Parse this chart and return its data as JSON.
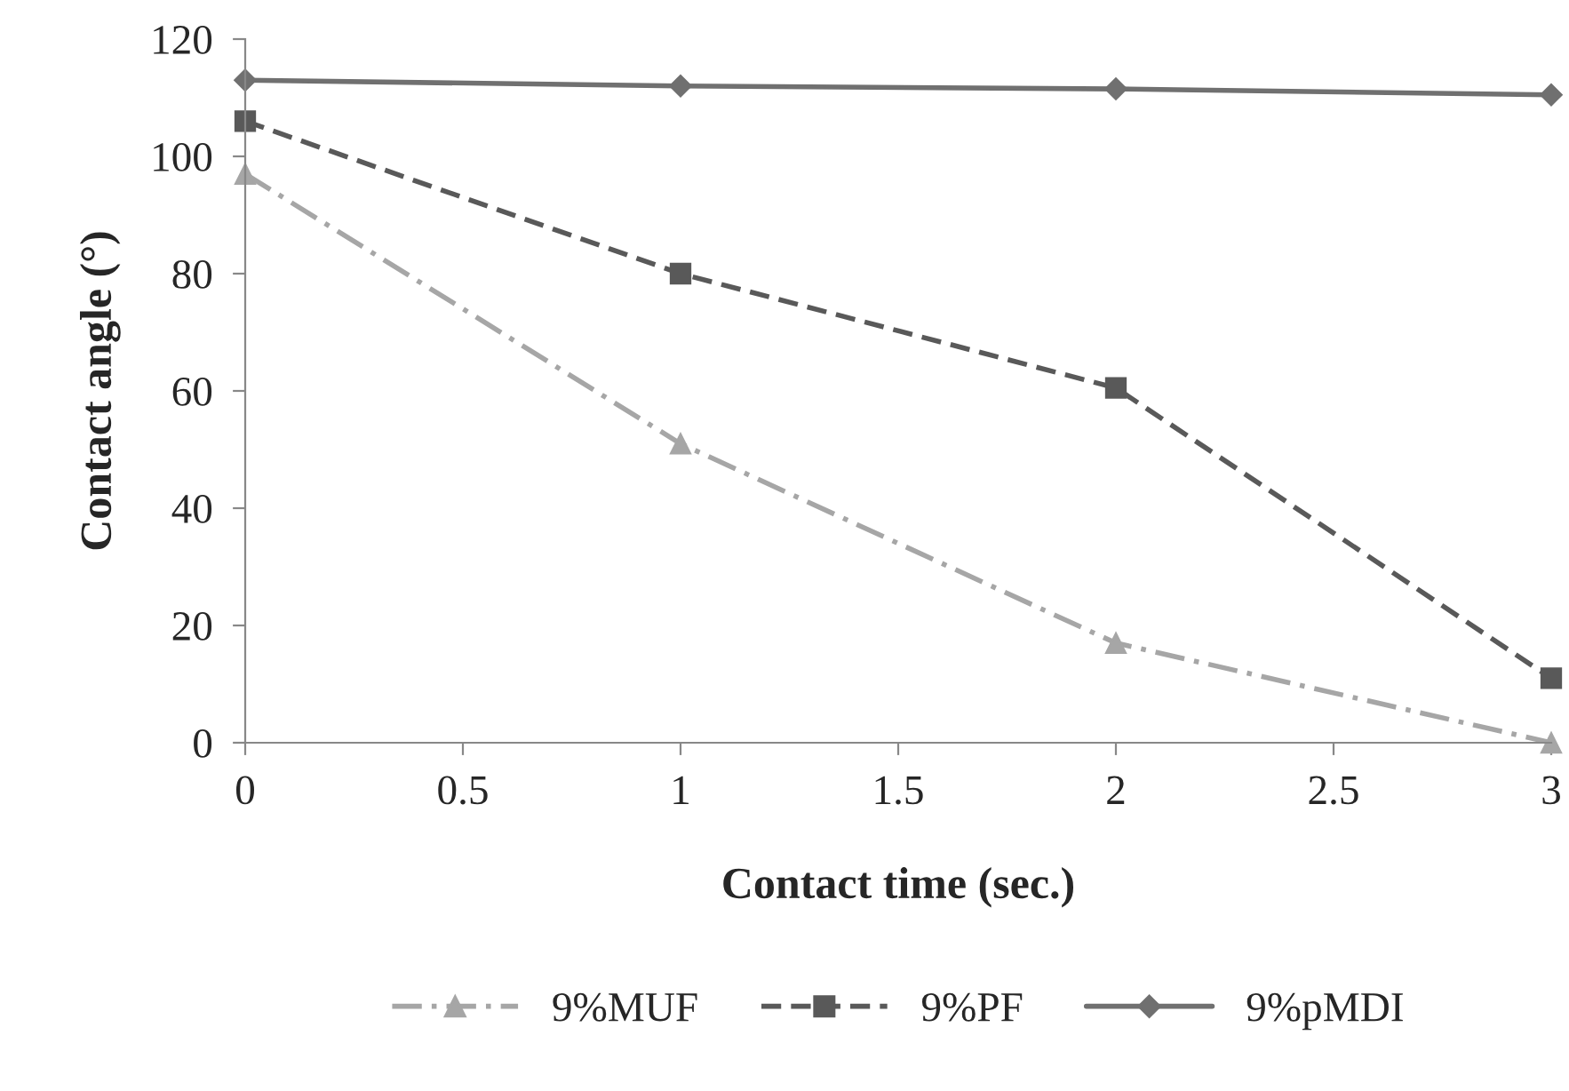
{
  "chart_data": {
    "type": "line",
    "xlabel": "Contact time (sec.)",
    "ylabel": "Contact angle (°)",
    "x": [
      0,
      1,
      2,
      3
    ],
    "series": [
      {
        "name": "9%MUF",
        "color": "#a6a6a6",
        "values": [
          97,
          51,
          17,
          0
        ],
        "marker": "triangle",
        "line_style": "dashdot"
      },
      {
        "name": "9%PF",
        "color": "#595959",
        "values": [
          106,
          80,
          60.5,
          11
        ],
        "marker": "square",
        "line_style": "dashed"
      },
      {
        "name": "9%pMDI",
        "color": "#707070",
        "values": [
          113,
          112,
          111.5,
          110.5
        ],
        "marker": "diamond",
        "line_style": "solid"
      }
    ],
    "xlim": [
      0,
      3
    ],
    "xticks": [
      0,
      0.5,
      1,
      1.5,
      2,
      2.5,
      3
    ],
    "ylim": [
      0,
      120
    ],
    "yticks": [
      0,
      20,
      40,
      60,
      80,
      100,
      120
    ],
    "grid": false,
    "legend": "bottom"
  }
}
